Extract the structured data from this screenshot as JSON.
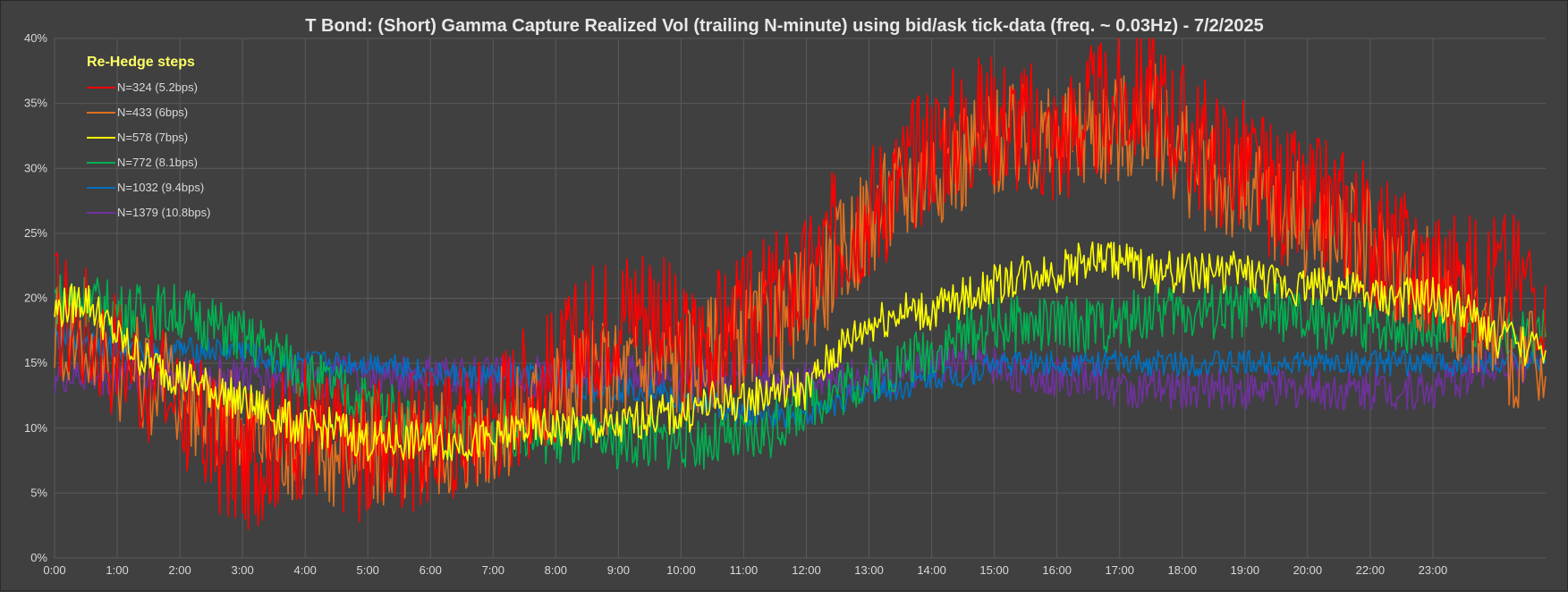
{
  "chart_data": {
    "type": "line",
    "title": "T Bond: (Short) Gamma Capture Realized Vol (trailing N-minute) using bid/ask tick-data (freq. ~ 0.03Hz) - 7/2/2025",
    "xlabel": "",
    "ylabel": "",
    "x_ticks": [
      "0:00",
      "1:00",
      "2:00",
      "3:00",
      "4:00",
      "5:00",
      "6:00",
      "7:00",
      "8:00",
      "9:00",
      "10:00",
      "11:00",
      "12:00",
      "13:00",
      "14:00",
      "15:00",
      "16:00",
      "17:00",
      "18:00",
      "19:00",
      "20:00",
      "22:00",
      "23:00"
    ],
    "x_tick_hours": [
      0,
      1,
      2,
      3,
      4,
      5,
      6,
      7,
      8,
      9,
      10,
      11,
      12,
      13,
      14,
      15,
      16,
      17,
      18,
      19,
      20,
      21,
      22
    ],
    "xlim": [
      0,
      23.8
    ],
    "y_ticks": [
      "0%",
      "5%",
      "10%",
      "15%",
      "20%",
      "25%",
      "30%",
      "35%",
      "40%"
    ],
    "ylim": [
      0,
      40
    ],
    "grid": true,
    "legend": {
      "title": "Re-Hedge steps",
      "placement": "top-left"
    },
    "series": [
      {
        "name": "N=324 (5.2bps)",
        "color": "#ff0000",
        "x": [
          0,
          1,
          2,
          2.5,
          3,
          3.5,
          4,
          4.5,
          5,
          5.5,
          6,
          6.5,
          7,
          7.5,
          8,
          8.5,
          9,
          9.5,
          10,
          10.5,
          11,
          11.5,
          12,
          12.5,
          13,
          13.5,
          14,
          14.5,
          15,
          15.5,
          16,
          16.5,
          17,
          17.5,
          18,
          18.5,
          19,
          19.5,
          20,
          20.5,
          21,
          21.5,
          22,
          22.5,
          23,
          23.8
        ],
        "y": [
          19,
          16,
          12,
          9,
          7,
          9,
          10,
          9,
          8,
          9,
          9,
          10,
          11,
          13,
          14,
          17,
          19,
          20,
          16,
          17,
          18,
          20,
          21,
          25,
          27,
          29,
          32,
          33,
          34,
          33,
          32,
          34,
          35,
          36,
          33,
          31,
          30,
          28,
          27,
          27,
          25,
          23,
          22,
          21,
          22,
          21
        ]
      },
      {
        "name": "N=433 (6bps)",
        "color": "#e07020",
        "x": [
          0,
          1,
          2,
          2.5,
          3,
          3.5,
          4,
          4.5,
          5,
          5.5,
          6,
          6.5,
          7,
          7.5,
          8,
          8.5,
          9,
          9.5,
          10,
          10.5,
          11,
          11.5,
          12,
          12.5,
          13,
          13.5,
          14,
          14.5,
          15,
          15.5,
          16,
          16.5,
          17,
          17.5,
          18,
          18.5,
          19,
          19.5,
          20,
          20.5,
          21,
          21.5,
          22,
          22.5,
          23,
          23.8
        ],
        "y": [
          18,
          15,
          13,
          11,
          10,
          9,
          9,
          8,
          8,
          8,
          9,
          9,
          10,
          11,
          13,
          14,
          14,
          15,
          15,
          16,
          17,
          18,
          20,
          23,
          26,
          28,
          30,
          31,
          32,
          32,
          32,
          33,
          33,
          34,
          31,
          29,
          28,
          27,
          26,
          25,
          24,
          22,
          21,
          19,
          17,
          14
        ]
      },
      {
        "name": "N=578 (7bps)",
        "color": "#ffff00",
        "x": [
          0,
          0.5,
          1,
          1.5,
          2,
          2.5,
          3,
          3.5,
          4,
          4.5,
          5,
          5.5,
          6,
          6.5,
          7,
          7.5,
          8,
          8.5,
          9,
          9.5,
          10,
          10.5,
          11,
          11.5,
          12,
          12.5,
          13,
          13.5,
          14,
          14.5,
          15,
          15.5,
          16,
          16.5,
          17,
          17.5,
          18,
          18.5,
          19,
          19.5,
          20,
          20.5,
          21,
          21.5,
          22,
          22.5,
          23,
          23.8
        ],
        "y": [
          19,
          20,
          17,
          15,
          14,
          13,
          12,
          11,
          10,
          10,
          9,
          9,
          9,
          9,
          9,
          10,
          10,
          10,
          10,
          11,
          11,
          12,
          12,
          13,
          13,
          16,
          18,
          19,
          19,
          20,
          21,
          22,
          22,
          23,
          23,
          22,
          22,
          22,
          22,
          21,
          21,
          21,
          20,
          20,
          20,
          19,
          17,
          16
        ]
      },
      {
        "name": "N=772 (8.1bps)",
        "color": "#00b050",
        "x": [
          0,
          0.5,
          1,
          1.5,
          2,
          2.5,
          3,
          3.5,
          4,
          4.5,
          5,
          5.5,
          6,
          6.5,
          7,
          7.5,
          8,
          8.5,
          9,
          9.5,
          10,
          10.5,
          11,
          11.5,
          12,
          12.5,
          13,
          13.5,
          14,
          14.5,
          15,
          15.5,
          16,
          16.5,
          17,
          17.5,
          18,
          18.5,
          19,
          19.5,
          20,
          20.5,
          21,
          21.5,
          22,
          22.5,
          23,
          23.8
        ],
        "y": [
          20,
          20,
          19,
          19,
          19,
          18,
          17,
          16,
          14,
          13,
          12,
          11,
          10,
          10,
          10,
          10,
          9,
          9,
          9,
          9,
          9,
          9,
          9,
          10,
          12,
          13,
          14,
          15,
          16,
          17,
          18,
          18,
          18,
          18,
          18,
          19,
          19,
          19,
          19,
          19,
          18,
          18,
          18,
          18,
          18,
          18,
          17,
          17
        ]
      },
      {
        "name": "N=1032 (9.4bps)",
        "color": "#0070c0",
        "x": [
          0,
          0.5,
          1,
          1.5,
          2,
          2.5,
          3,
          3.5,
          4,
          4.5,
          5,
          5.5,
          6,
          6.5,
          7,
          7.5,
          8,
          8.5,
          9,
          9.5,
          10,
          10.5,
          11,
          11.5,
          12,
          12.5,
          13,
          13.5,
          14,
          14.5,
          15,
          15.5,
          16,
          16.5,
          17,
          17.5,
          18,
          18.5,
          19,
          19.5,
          20,
          20.5,
          21,
          21.5,
          22,
          22.5,
          23,
          23.8
        ],
        "y": [
          17,
          17,
          16,
          16,
          16,
          16,
          16,
          15,
          15,
          15,
          15,
          15,
          14,
          14,
          14,
          14,
          14,
          13,
          13,
          13,
          12,
          12,
          11,
          11,
          11,
          12,
          13,
          13,
          14,
          14,
          15,
          15,
          15,
          15,
          15,
          15,
          15,
          15,
          15,
          15,
          15,
          15,
          15,
          15,
          15,
          15,
          15,
          15
        ]
      },
      {
        "name": "N=1379 (10.8bps)",
        "color": "#7030a0",
        "x": [
          0,
          0.5,
          1,
          1.5,
          2,
          2.5,
          3,
          3.5,
          4,
          4.5,
          5,
          5.5,
          6,
          6.5,
          7,
          7.5,
          8,
          8.5,
          9,
          9.5,
          10,
          10.5,
          11,
          11.5,
          12,
          12.5,
          13,
          13.5,
          14,
          14.5,
          15,
          15.5,
          16,
          16.5,
          17,
          17.5,
          18,
          18.5,
          19,
          19.5,
          20,
          20.5,
          21,
          21.5,
          22,
          22.5,
          23,
          23.8
        ],
        "y": [
          14,
          14,
          14,
          14,
          14,
          14,
          14,
          14,
          14,
          14,
          14,
          14,
          14,
          14,
          14,
          14,
          14,
          14,
          14,
          14,
          14,
          14,
          14,
          14,
          14,
          14,
          14,
          14,
          15,
          15,
          15,
          14,
          14,
          14,
          13,
          13,
          13,
          13,
          13,
          13,
          13,
          13,
          13,
          13,
          13,
          14,
          15,
          15
        ]
      }
    ]
  }
}
